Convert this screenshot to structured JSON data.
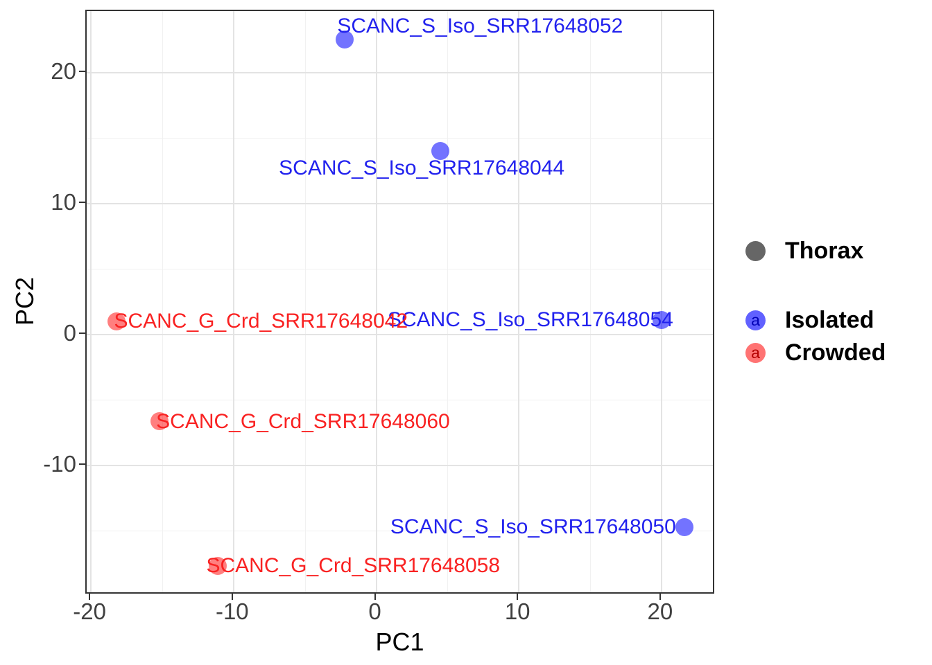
{
  "chart_data": {
    "type": "scatter",
    "title": "",
    "xlabel": "PC1",
    "ylabel": "PC2",
    "xlim": [
      -20.3,
      23.8
    ],
    "ylim": [
      -19.9,
      24.7
    ],
    "x_major_ticks": [
      -20,
      -10,
      0,
      10,
      20
    ],
    "x_minor_ticks": [
      -15,
      -5,
      5,
      15
    ],
    "y_major_ticks": [
      -10,
      0,
      10,
      20
    ],
    "y_minor_ticks": [
      -15,
      -5,
      5,
      15
    ],
    "grid": "major+minor",
    "legend_position": "right",
    "series": [
      {
        "name": "Isolated",
        "point_fill": "rgba(0,0,255,0.55)",
        "label_color": "#2222EE",
        "points": [
          {
            "label": "SCANC_S_Iso_SRR17648052",
            "x": -2.1,
            "y": 22.4,
            "label_dx": 195,
            "label_dy": -19
          },
          {
            "label": "SCANC_S_Iso_SRR17648044",
            "x": 4.6,
            "y": 13.9,
            "label_dx": -27,
            "label_dy": 25
          },
          {
            "label": "SCANC_S_Iso_SRR17648054",
            "x": 20.1,
            "y": 1.0,
            "label_dx": -189,
            "label_dy": 0
          },
          {
            "label": "SCANC_S_Iso_SRR17648050",
            "x": 21.7,
            "y": -14.8,
            "label_dx": -218,
            "label_dy": 0
          }
        ]
      },
      {
        "name": "Crowded",
        "point_fill": "rgba(255,0,0,0.5)",
        "label_color": "#F92222",
        "points": [
          {
            "label": "SCANC_G_Crd_SRR17648042",
            "x": -18.1,
            "y": 0.9,
            "label_dx": 208,
            "label_dy": 0
          },
          {
            "label": "SCANC_G_Crd_SRR17648060",
            "x": -15.1,
            "y": -6.7,
            "label_dx": 207,
            "label_dy": 1
          },
          {
            "label": "SCANC_G_Crd_SRR17648058",
            "x": -11.0,
            "y": -17.8,
            "label_dx": 195,
            "label_dy": 0
          }
        ]
      }
    ],
    "legend": {
      "items": [
        {
          "label": "Thorax",
          "marker": "dot",
          "marker_color": "#666666",
          "glyph": "",
          "glyph_color": ""
        },
        {
          "label": "Isolated",
          "marker": "text-point",
          "marker_color": "rgba(0,0,255,0.62)",
          "glyph": "a",
          "glyph_color": "#0000B4"
        },
        {
          "label": "Crowded",
          "marker": "text-point",
          "marker_color": "rgba(255,0,0,0.55)",
          "glyph": "a",
          "glyph_color": "#B40000"
        }
      ]
    }
  }
}
